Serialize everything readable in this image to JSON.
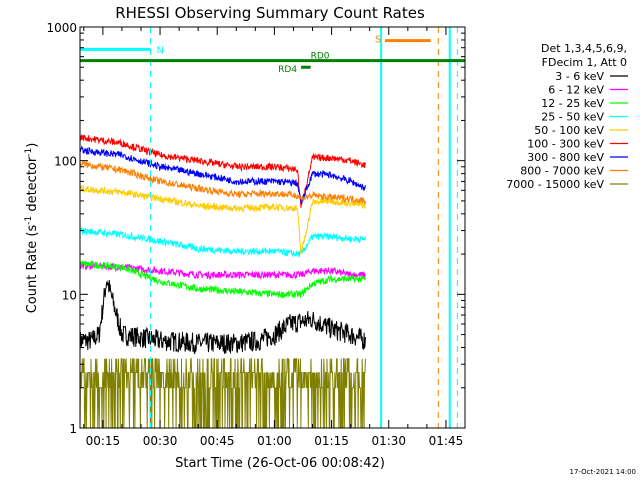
{
  "chart_data": {
    "type": "line",
    "title": "RHESSI Observing Summary Count Rates",
    "xlabel": "Start Time (26-Oct-06 00:08:42)",
    "ylabel_main": "Count Rate (s",
    "ylabel_sup1": "-1",
    "ylabel_mid": " detector",
    "ylabel_sup2": "-1",
    "ylabel_end": ")",
    "yscale": "log",
    "ylim": [
      1,
      1000
    ],
    "xlim_minutes": [
      9,
      110
    ],
    "x_ticks": [
      {
        "label": "00:15",
        "minute": 15
      },
      {
        "label": "00:30",
        "minute": 30
      },
      {
        "label": "00:45",
        "minute": 45
      },
      {
        "label": "01:00",
        "minute": 60
      },
      {
        "label": "01:15",
        "minute": 75
      },
      {
        "label": "01:30",
        "minute": 90
      },
      {
        "label": "01:45",
        "minute": 105
      }
    ],
    "y_ticks": [
      {
        "label": "1",
        "value": 1
      },
      {
        "label": "10",
        "value": 10
      },
      {
        "label": "100",
        "value": 100
      },
      {
        "label": "1000",
        "value": 1000
      }
    ],
    "legend_header": [
      "Det 1,3,4,5,6,9,",
      "FDecim 1, Att 0"
    ],
    "legend_position": "right",
    "series": [
      {
        "name": "3 - 6 keV",
        "color": "#000000",
        "level": 4.5,
        "noise": 0.18,
        "x": [
          9,
          12,
          14,
          16,
          20,
          30,
          40,
          50,
          56,
          60,
          64,
          70,
          75,
          80,
          84
        ],
        "y": [
          4.5,
          4.5,
          5.0,
          13.0,
          5.0,
          4.5,
          4.3,
          4.3,
          4.5,
          5.0,
          6.0,
          6.5,
          5.5,
          5.0,
          4.5
        ]
      },
      {
        "name": "6 - 12 keV",
        "color": "#ff00ff",
        "x": [
          9,
          20,
          30,
          40,
          50,
          60,
          66,
          67,
          70,
          75,
          80,
          84
        ],
        "y": [
          16.5,
          16.0,
          15.0,
          14.0,
          14.0,
          14.0,
          14.0,
          14.0,
          15.0,
          15.0,
          14.0,
          14.0
        ]
      },
      {
        "name": "12 - 25 keV",
        "color": "#00ff00",
        "x": [
          9,
          20,
          30,
          40,
          50,
          60,
          66,
          67,
          70,
          75,
          80,
          84
        ],
        "y": [
          17.0,
          16.0,
          12.5,
          11.0,
          10.5,
          10.0,
          10.0,
          10.0,
          12.0,
          13.0,
          13.0,
          13.0
        ]
      },
      {
        "name": "25 - 50 keV",
        "color": "#00ffff",
        "x": [
          9,
          20,
          30,
          40,
          50,
          60,
          66,
          67,
          70,
          75,
          80,
          84
        ],
        "y": [
          30.0,
          28.0,
          25.0,
          22.0,
          21.0,
          21.0,
          20.0,
          20.0,
          27.0,
          27.0,
          26.0,
          26.0
        ]
      },
      {
        "name": "50 - 100 keV",
        "color": "#ffcc00",
        "x": [
          9,
          20,
          30,
          40,
          50,
          60,
          66,
          67,
          70,
          75,
          80,
          84
        ],
        "y": [
          62.0,
          58.0,
          52.0,
          46.0,
          44.0,
          45.0,
          44.0,
          20.0,
          49.0,
          50.0,
          48.0,
          46.0
        ]
      },
      {
        "name": "100 - 300 keV",
        "color": "#ff0000",
        "x": [
          9,
          20,
          30,
          40,
          50,
          60,
          66,
          67,
          70,
          75,
          80,
          84
        ],
        "y": [
          150.0,
          135.0,
          110.0,
          100.0,
          90.0,
          90.0,
          86.0,
          45.0,
          105.0,
          105.0,
          100.0,
          92.0
        ]
      },
      {
        "name": "300 - 800 keV",
        "color": "#0000ff",
        "x": [
          9,
          20,
          30,
          40,
          50,
          60,
          66,
          67,
          70,
          75,
          80,
          84
        ],
        "y": [
          120.0,
          110.0,
          90.0,
          80.0,
          70.0,
          70.0,
          68.0,
          48.0,
          80.0,
          78.0,
          70.0,
          62.0
        ]
      },
      {
        "name": "800 - 7000 keV",
        "color": "#ff8000",
        "x": [
          9,
          20,
          30,
          40,
          50,
          60,
          66,
          67,
          70,
          75,
          80,
          84
        ],
        "y": [
          95.0,
          85.0,
          70.0,
          62.0,
          56.0,
          57.0,
          55.0,
          52.0,
          55.0,
          53.0,
          52.0,
          50.0
        ]
      },
      {
        "name": "7000 - 15000 keV",
        "color": "#808000",
        "level": 2.2,
        "noise": 0.3,
        "x": [
          9,
          20,
          30,
          40,
          50,
          60,
          70,
          80,
          84
        ],
        "y": [
          2.0,
          2.0,
          2.2,
          2.0,
          2.2,
          2.3,
          2.5,
          2.6,
          2.3
        ]
      }
    ],
    "annotations": {
      "N": {
        "label": "N",
        "color": "#00ffff",
        "start_minute": 9,
        "end_minute": 27.5,
        "value": 680
      },
      "S": {
        "label": "S",
        "color": "#ff8000",
        "start_minute": 89,
        "end_minute": 101,
        "value": 790
      },
      "RD0": {
        "label": "RD0",
        "color": "#008000",
        "value": 560
      },
      "RD4": {
        "label": "RD4",
        "color": "#008000",
        "start_minute": 67,
        "end_minute": 69.5,
        "value": 500
      },
      "cyan_dashed_minutes": [
        27.5,
        108
      ],
      "orange_dashed_minutes": [
        103
      ],
      "cyan_solid_minutes": [
        88,
        106
      ]
    },
    "footer": "17-Oct-2021 14:00"
  }
}
